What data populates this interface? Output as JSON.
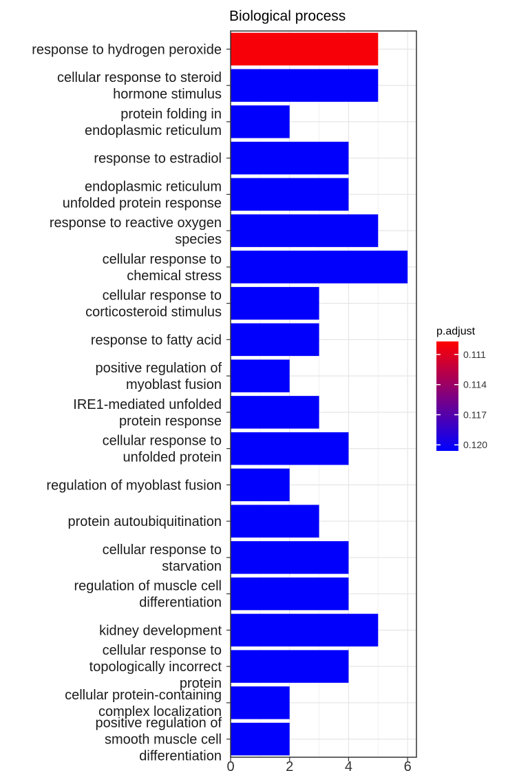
{
  "chart_data": {
    "type": "bar",
    "orientation": "horizontal",
    "title": "Biological process",
    "xlabel": "",
    "ylabel": "",
    "xlim": [
      0,
      6.3
    ],
    "x_ticks": [
      0,
      2,
      4,
      6
    ],
    "grid": true,
    "legend": {
      "title": "p.adjust",
      "placement": "right",
      "range": [
        0.1097,
        0.1206
      ],
      "ticks": [
        "0.111",
        "0.114",
        "0.117",
        "0.120"
      ],
      "tick_values": [
        0.111,
        0.114,
        0.117,
        0.12
      ],
      "color_low": "#FF0000",
      "color_high": "#0000FF"
    },
    "categories": [
      [
        "response to hydrogen peroxide"
      ],
      [
        "cellular response to steroid",
        "hormone stimulus"
      ],
      [
        "protein folding in",
        "endoplasmic reticulum"
      ],
      [
        "response to estradiol"
      ],
      [
        "endoplasmic reticulum",
        "unfolded protein response"
      ],
      [
        "response to reactive oxygen",
        "species"
      ],
      [
        "cellular response to",
        "chemical stress"
      ],
      [
        "cellular response to",
        "corticosteroid stimulus"
      ],
      [
        "response to fatty acid"
      ],
      [
        "positive regulation of",
        "myoblast fusion"
      ],
      [
        "IRE1-mediated unfolded",
        "protein response"
      ],
      [
        "cellular response to",
        "unfolded protein"
      ],
      [
        "regulation of myoblast fusion"
      ],
      [
        "protein autoubiquitination"
      ],
      [
        "cellular response to",
        "starvation"
      ],
      [
        "regulation of muscle cell",
        "differentiation"
      ],
      [
        "kidney development"
      ],
      [
        "cellular response to",
        "topologically incorrect",
        "protein"
      ],
      [
        "cellular protein-containing",
        "complex localization"
      ],
      [
        "positive regulation of",
        "smooth muscle cell",
        "differentiation"
      ]
    ],
    "values": [
      5,
      5,
      2,
      4,
      4,
      5,
      6,
      3,
      3,
      2,
      3,
      4,
      2,
      3,
      4,
      4,
      5,
      4,
      2,
      2
    ],
    "p_adjust": [
      0.11,
      0.1205,
      0.1205,
      0.1205,
      0.1205,
      0.1205,
      0.1205,
      0.1205,
      0.1205,
      0.1205,
      0.1205,
      0.1205,
      0.1205,
      0.1205,
      0.1205,
      0.1205,
      0.1205,
      0.1205,
      0.1205,
      0.1205
    ]
  }
}
